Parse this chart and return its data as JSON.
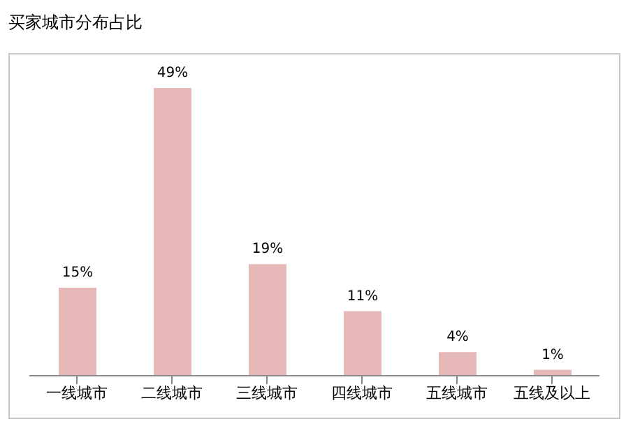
{
  "chart_data": {
    "type": "bar",
    "title": "买家城市分布占比",
    "categories": [
      "一线城市",
      "二线城市",
      "三线城市",
      "四线城市",
      "五线城市",
      "五线及以上"
    ],
    "values": [
      15,
      49,
      19,
      11,
      4,
      1
    ],
    "value_labels": [
      "15%",
      "49%",
      "19%",
      "11%",
      "4%",
      "1%"
    ],
    "color": "#e6b8b7",
    "grid": false,
    "legend": false
  }
}
